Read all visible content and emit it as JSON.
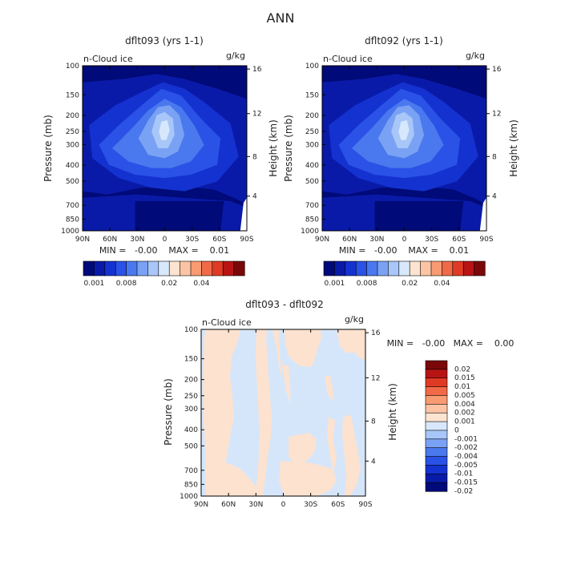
{
  "page_title": "ANN",
  "colors": {
    "top_levels": [
      "#000a78",
      "#0a1aa8",
      "#1432d0",
      "#2a52e6",
      "#4a78ee",
      "#7aa2f4",
      "#a8c6f8",
      "#d8e8fc",
      "#fde4d0",
      "#fcc4a4",
      "#f89a72",
      "#f06a48",
      "#e03a24",
      "#b81414",
      "#7a0808"
    ],
    "diff_levels": [
      "#000a78",
      "#0a1aa8",
      "#1432d0",
      "#2a52e6",
      "#4a78ee",
      "#7aa2f4",
      "#a8c6f8",
      "#d8e8fc",
      "#fde4d0",
      "#fcc4a4",
      "#f89a72",
      "#f06a48",
      "#e03a24",
      "#b81414",
      "#7a0808"
    ]
  },
  "chart_data": [
    {
      "type": "heatmap",
      "title": "dflt093 (yrs 1-1)",
      "variable_label": "n-Cloud ice",
      "units": "g/kg",
      "ylabel": "Pressure (mb)",
      "y2label": "Height (km)",
      "x_ticks": [
        "90N",
        "60N",
        "30N",
        "0",
        "30S",
        "60S",
        "90S"
      ],
      "y_ticks": [
        "100",
        "150",
        "200",
        "250",
        "300",
        "400",
        "500",
        "700",
        "850",
        "1000"
      ],
      "y2_ticks": [
        "16",
        "12",
        "8",
        "4"
      ],
      "x_range": [
        90,
        -90
      ],
      "y_range_mb": [
        100,
        1000
      ],
      "stats": "MIN =   -0.00    MAX =    0.01",
      "colorbar_labels": [
        "0.001",
        "0.008",
        "0.02",
        "0.04"
      ],
      "peak_lat": 0,
      "peak_p_mb": 250,
      "peak_value": 0.01
    },
    {
      "type": "heatmap",
      "title": "dflt092 (yrs 1-1)",
      "variable_label": "n-Cloud ice",
      "units": "g/kg",
      "ylabel": "Pressure (mb)",
      "y2label": "Height (km)",
      "x_ticks": [
        "90N",
        "60N",
        "30N",
        "0",
        "30S",
        "60S",
        "90S"
      ],
      "y_ticks": [
        "100",
        "150",
        "200",
        "250",
        "300",
        "400",
        "500",
        "700",
        "850",
        "1000"
      ],
      "y2_ticks": [
        "16",
        "12",
        "8",
        "4"
      ],
      "x_range": [
        90,
        -90
      ],
      "y_range_mb": [
        100,
        1000
      ],
      "stats": "MIN =   -0.00    MAX =    0.01",
      "colorbar_labels": [
        "0.001",
        "0.008",
        "0.02",
        "0.04"
      ],
      "peak_lat": 0,
      "peak_p_mb": 250,
      "peak_value": 0.01
    },
    {
      "type": "heatmap",
      "title": "dflt093 - dflt092",
      "variable_label": "n-Cloud ice",
      "units": "g/kg",
      "ylabel": "Pressure (mb)",
      "y2label": "Height (km)",
      "x_ticks": [
        "90N",
        "60N",
        "30N",
        "0",
        "30S",
        "60S",
        "90S"
      ],
      "y_ticks": [
        "100",
        "150",
        "200",
        "250",
        "300",
        "400",
        "500",
        "700",
        "850",
        "1000"
      ],
      "y2_ticks": [
        "16",
        "12",
        "8",
        "4"
      ],
      "x_range": [
        90,
        -90
      ],
      "y_range_mb": [
        100,
        1000
      ],
      "stats": "MIN =   -0.00   MAX =    0.00",
      "colorbar_labels": [
        "0.02",
        "0.015",
        "0.01",
        "0.005",
        "0.004",
        "0.002",
        "0.001",
        "0",
        "-0.001",
        "-0.002",
        "-0.004",
        "-0.005",
        "-0.01",
        "-0.015",
        "-0.02"
      ],
      "field_values": [
        "0",
        "0.001"
      ]
    }
  ]
}
